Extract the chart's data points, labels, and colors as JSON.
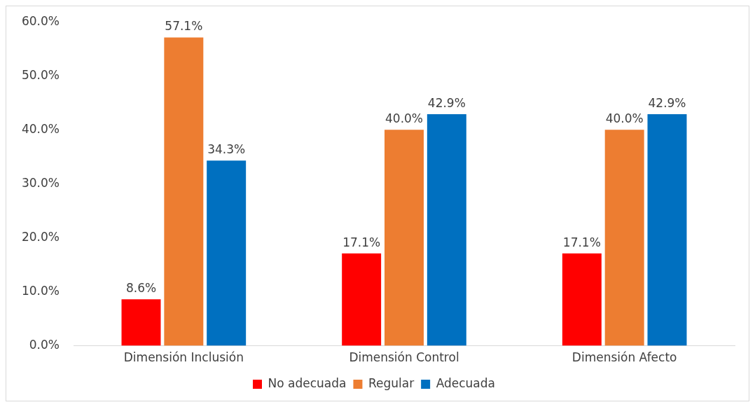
{
  "chart_data": {
    "type": "bar",
    "categories": [
      "Dimensión Inclusión",
      "Dimensión Control",
      "Dimensión Afecto"
    ],
    "series": [
      {
        "name": "No adecuada",
        "color": "#ff0000",
        "values": [
          8.6,
          17.1,
          17.1
        ],
        "value_labels": [
          "8.6%",
          "17.1%",
          "17.1%"
        ]
      },
      {
        "name": "Regular",
        "color": "#ed7d31",
        "values": [
          57.1,
          40.0,
          40.0
        ],
        "value_labels": [
          "57.1%",
          "40.0%",
          "40.0%"
        ]
      },
      {
        "name": "Adecuada",
        "color": "#0070c0",
        "values": [
          34.3,
          42.9,
          42.9
        ],
        "value_labels": [
          "34.3%",
          "42.9%",
          "42.9%"
        ]
      }
    ],
    "ylim": [
      0,
      60
    ],
    "yticks": [
      {
        "value": 0,
        "label": "0.0%"
      },
      {
        "value": 10,
        "label": "10.0%"
      },
      {
        "value": 20,
        "label": "20.0%"
      },
      {
        "value": 30,
        "label": "30.0%"
      },
      {
        "value": 40,
        "label": "40.0%"
      },
      {
        "value": 50,
        "label": "50.0%"
      },
      {
        "value": 60,
        "label": "60.0%"
      }
    ],
    "grid": false,
    "legend": "bottom"
  }
}
